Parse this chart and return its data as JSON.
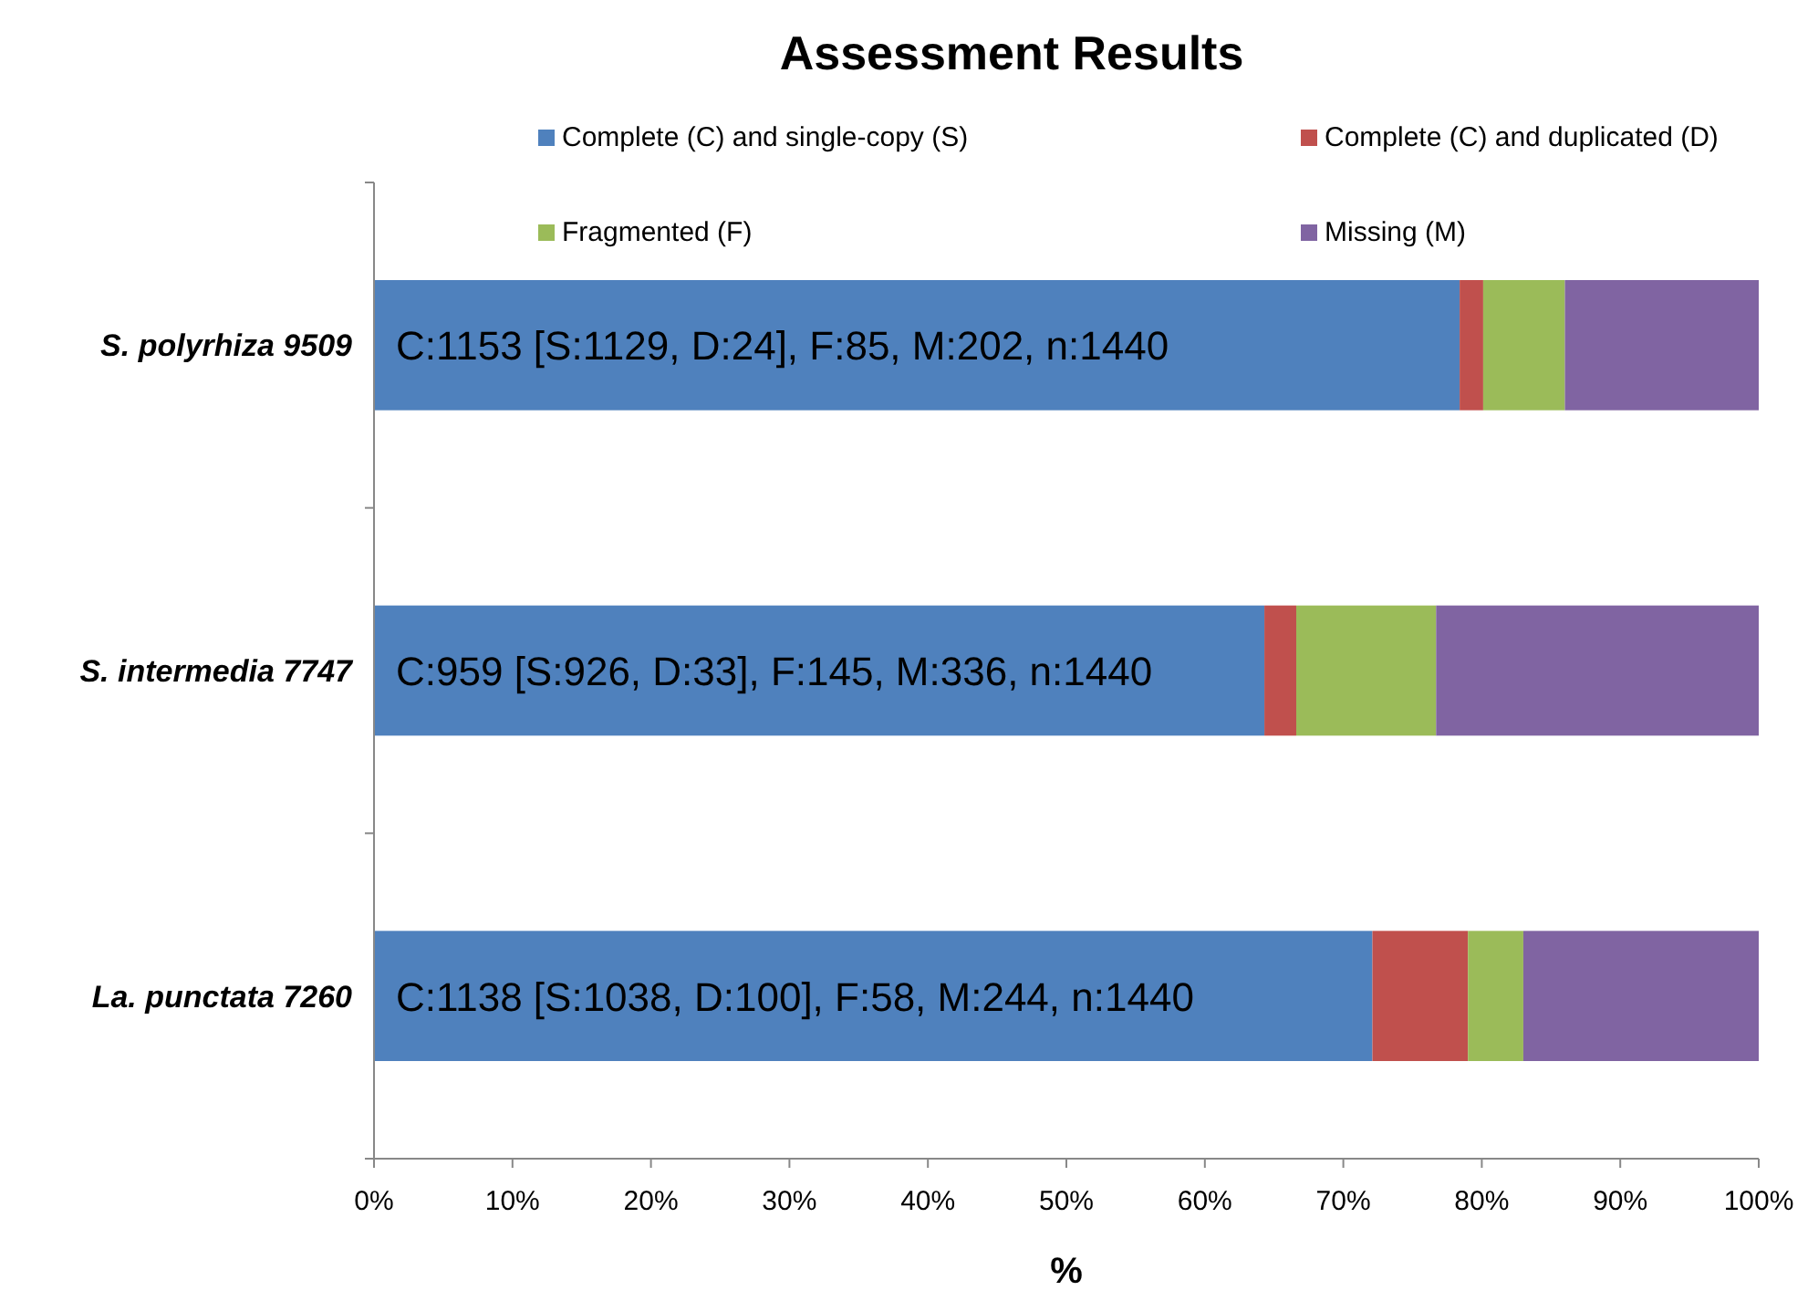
{
  "chart_data": {
    "type": "bar",
    "orientation": "horizontal",
    "stacked": true,
    "title": "Assessment Results",
    "xlabel": "%",
    "categories": [
      "S. polyrhiza 9509",
      "S. intermedia 7747",
      "La. punctata 7260"
    ],
    "series": [
      {
        "name": "Complete (C)  and single-copy (S)",
        "color": "#4f81bd",
        "values": [
          78.4,
          64.3,
          72.1
        ]
      },
      {
        "name": "Complete (C)  and duplicated (D)",
        "color": "#c0504d",
        "values": [
          1.7,
          2.3,
          6.9
        ]
      },
      {
        "name": "Fragmented (F)",
        "color": "#9bbb59",
        "values": [
          5.9,
          10.1,
          4.0
        ]
      },
      {
        "name": "Missing (M)",
        "color": "#8064a2",
        "values": [
          14.0,
          23.3,
          17.0
        ]
      }
    ],
    "xlim": [
      0,
      100
    ],
    "xticks": [
      {
        "value": 0,
        "label": "0%"
      },
      {
        "value": 10,
        "label": "10%"
      },
      {
        "value": 20,
        "label": "20%"
      },
      {
        "value": 30,
        "label": "30%"
      },
      {
        "value": 40,
        "label": "40%"
      },
      {
        "value": 50,
        "label": "50%"
      },
      {
        "value": 60,
        "label": "60%"
      },
      {
        "value": 70,
        "label": "70%"
      },
      {
        "value": 80,
        "label": "80%"
      },
      {
        "value": 90,
        "label": "90%"
      },
      {
        "value": 100,
        "label": "100%"
      }
    ],
    "annotations": [
      "C:1153 [S:1129, D:24], F:85, M:202, n:1440",
      "C:959 [S:926, D:33], F:145, M:336, n:1440",
      "C:1138 [S:1038, D:100], F:58, M:244, n:1440"
    ],
    "grid": false,
    "legend": "top"
  }
}
